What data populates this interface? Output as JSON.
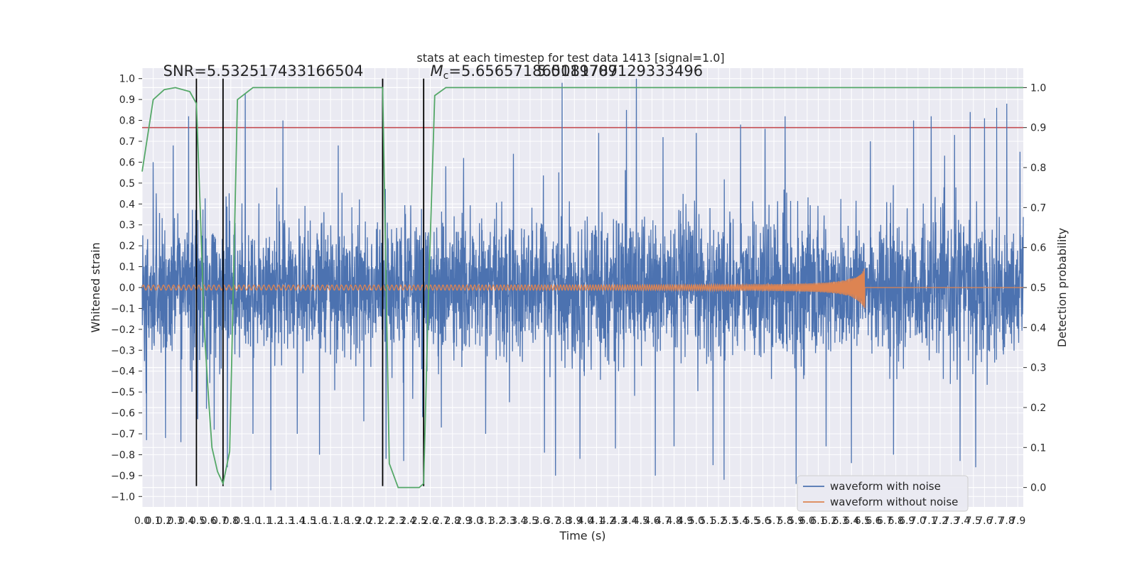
{
  "chart_data": {
    "type": "line",
    "title": "stats at each timestep for test data 1413 [signal=1.0]",
    "xlabel": "Time (s)",
    "ylabel": "Whitened strain",
    "y2label": "Detection probability",
    "xlim": [
      0.0,
      7.95
    ],
    "ylim": [
      -1.05,
      1.05
    ],
    "y2lim": [
      -0.0486,
      1.0486
    ],
    "x_ticks": [
      0.0,
      0.1,
      0.2,
      0.3,
      0.4,
      0.5,
      0.6,
      0.7,
      0.8,
      0.9,
      1.0,
      1.1,
      1.2,
      1.3,
      1.4,
      1.5,
      1.6,
      1.7,
      1.8,
      1.9,
      2.0,
      2.1,
      2.2,
      2.3,
      2.4,
      2.5,
      2.6,
      2.7,
      2.8,
      2.9,
      3.0,
      3.1,
      3.2,
      3.3,
      3.4,
      3.5,
      3.6,
      3.7,
      3.8,
      3.9,
      4.0,
      4.1,
      4.2,
      4.3,
      4.4,
      4.5,
      4.6,
      4.7,
      4.8,
      4.9,
      5.0,
      5.1,
      5.2,
      5.3,
      5.4,
      5.5,
      5.6,
      5.7,
      5.8,
      5.9,
      6.0,
      6.1,
      6.2,
      6.3,
      6.4,
      6.5,
      6.6,
      6.7,
      6.8,
      6.9,
      7.0,
      7.1,
      7.2,
      7.3,
      7.4,
      7.5,
      7.6,
      7.7,
      7.8,
      7.9
    ],
    "y_ticks": [
      -1.0,
      -0.9,
      -0.8,
      -0.7,
      -0.6,
      -0.5,
      -0.4,
      -0.3,
      -0.2,
      -0.1,
      0.0,
      0.1,
      0.2,
      0.3,
      0.4,
      0.5,
      0.6,
      0.7,
      0.8,
      0.9,
      1.0
    ],
    "y2_ticks": [
      0.0,
      0.1,
      0.2,
      0.3,
      0.4,
      0.5,
      0.6,
      0.7,
      0.8,
      0.9,
      1.0
    ],
    "threshold": {
      "y2": 0.9,
      "color": "#c44e52"
    },
    "vertical_lines": [
      {
        "x": 0.49,
        "y_range": [
          -0.95,
          1.0
        ]
      },
      {
        "x": 0.73,
        "y_range": [
          -0.95,
          1.0
        ]
      },
      {
        "x": 2.17,
        "y_range": [
          -0.95,
          1.0
        ]
      },
      {
        "x": 2.54,
        "y_range": [
          -0.95,
          1.0
        ]
      }
    ],
    "annotations": [
      {
        "text": "SNR=5.532517433166504",
        "x": 0.19,
        "y": 1.04
      },
      {
        "text_italic": "M",
        "text_sub": "c",
        "text": "=5.656571865081787",
        "x": 2.6,
        "y": 1.04
      },
      {
        "text": "5.0119709129333496",
        "x": 3.56,
        "y": 1.04
      }
    ],
    "series": [
      {
        "name": "waveform with noise",
        "color": "#4c72b0",
        "kind": "noise",
        "typical_amplitude": 0.3,
        "peaks": [
          {
            "x": 0.04,
            "y": -0.73
          },
          {
            "x": 0.1,
            "y": 0.6
          },
          {
            "x": 0.21,
            "y": -0.72
          },
          {
            "x": 0.28,
            "y": 0.68
          },
          {
            "x": 0.35,
            "y": -0.74
          },
          {
            "x": 0.42,
            "y": 0.82
          },
          {
            "x": 0.5,
            "y": -0.63
          },
          {
            "x": 0.58,
            "y": -0.58
          },
          {
            "x": 0.65,
            "y": -0.68
          },
          {
            "x": 0.77,
            "y": -0.86
          },
          {
            "x": 0.93,
            "y": 0.93
          },
          {
            "x": 1.0,
            "y": -0.7
          },
          {
            "x": 1.16,
            "y": -0.97
          },
          {
            "x": 1.27,
            "y": 0.8
          },
          {
            "x": 1.4,
            "y": -0.7
          },
          {
            "x": 1.6,
            "y": -0.8
          },
          {
            "x": 1.77,
            "y": 0.68
          },
          {
            "x": 2.0,
            "y": -0.64
          },
          {
            "x": 2.2,
            "y": -0.82
          },
          {
            "x": 2.36,
            "y": -0.83
          },
          {
            "x": 2.53,
            "y": -0.62
          },
          {
            "x": 2.7,
            "y": -0.67
          },
          {
            "x": 2.9,
            "y": 0.62
          },
          {
            "x": 3.1,
            "y": -0.7
          },
          {
            "x": 3.35,
            "y": 0.64
          },
          {
            "x": 3.63,
            "y": -0.79
          },
          {
            "x": 3.73,
            "y": -0.9
          },
          {
            "x": 3.79,
            "y": 0.98
          },
          {
            "x": 3.95,
            "y": -0.82
          },
          {
            "x": 4.12,
            "y": 0.74
          },
          {
            "x": 4.27,
            "y": -0.77
          },
          {
            "x": 4.37,
            "y": 0.85
          },
          {
            "x": 4.46,
            "y": 1.0
          },
          {
            "x": 4.63,
            "y": -0.9
          },
          {
            "x": 4.7,
            "y": 0.72
          },
          {
            "x": 4.8,
            "y": -0.76
          },
          {
            "x": 5.0,
            "y": 0.74
          },
          {
            "x": 5.15,
            "y": -0.85
          },
          {
            "x": 5.25,
            "y": -0.92
          },
          {
            "x": 5.4,
            "y": 0.78
          },
          {
            "x": 5.62,
            "y": 0.76
          },
          {
            "x": 5.8,
            "y": 0.82
          },
          {
            "x": 5.9,
            "y": -0.94
          },
          {
            "x": 6.17,
            "y": -0.76
          },
          {
            "x": 6.4,
            "y": -0.84
          },
          {
            "x": 6.57,
            "y": 0.7
          },
          {
            "x": 6.78,
            "y": -0.8
          },
          {
            "x": 6.96,
            "y": 0.8
          },
          {
            "x": 7.12,
            "y": 0.82
          },
          {
            "x": 7.33,
            "y": 0.73
          },
          {
            "x": 7.38,
            "y": -0.83
          },
          {
            "x": 7.47,
            "y": 0.84
          },
          {
            "x": 7.52,
            "y": -0.86
          },
          {
            "x": 7.6,
            "y": 0.81
          },
          {
            "x": 7.71,
            "y": 0.86
          },
          {
            "x": 7.8,
            "y": 0.88
          },
          {
            "x": 7.92,
            "y": 0.65
          }
        ]
      },
      {
        "name": "waveform without noise",
        "color": "#dd8452",
        "kind": "chirp",
        "end_x": 6.52,
        "start_amplitude": 0.012,
        "end_amplitude": 0.13
      },
      {
        "name": "",
        "color": "#55a868",
        "axis": "right",
        "x": [
          0.0,
          0.05,
          0.1,
          0.2,
          0.3,
          0.43,
          0.49,
          0.53,
          0.56,
          0.6,
          0.63,
          0.68,
          0.73,
          0.79,
          0.86,
          1.0,
          1.5,
          2.1,
          2.17,
          2.23,
          2.31,
          2.5,
          2.54,
          2.58,
          2.64,
          2.74,
          3.5,
          5.0,
          7.95
        ],
        "y": [
          0.79,
          0.88,
          0.97,
          0.995,
          1.0,
          0.99,
          0.96,
          0.65,
          0.4,
          0.22,
          0.1,
          0.04,
          0.01,
          0.09,
          0.97,
          1.0,
          1.0,
          1.0,
          1.0,
          0.06,
          0.0,
          0.0,
          0.01,
          0.45,
          0.98,
          1.0,
          1.0,
          1.0,
          1.0
        ]
      }
    ],
    "legend": {
      "placement": "lower-right",
      "entries": [
        "waveform with noise",
        "waveform without noise"
      ]
    },
    "grid": true
  }
}
